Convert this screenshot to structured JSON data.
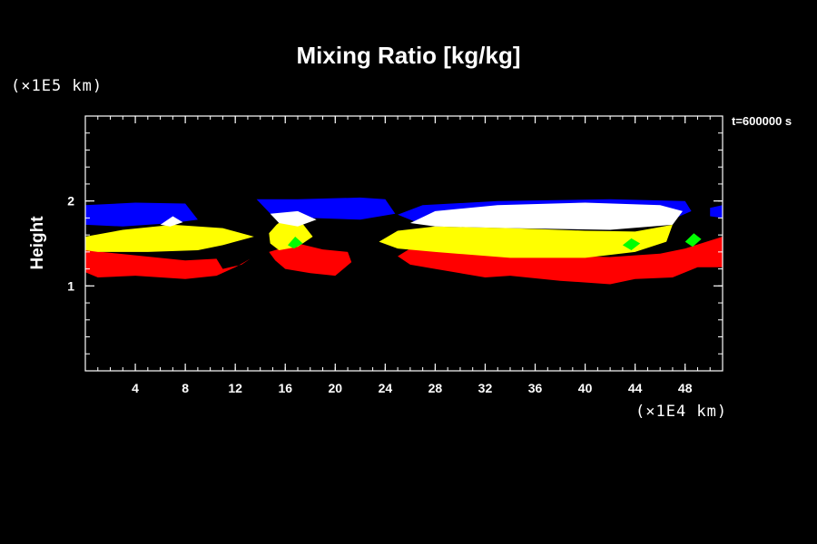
{
  "chart_data": {
    "type": "heatmap",
    "title": "Mixing Ratio [kg/kg]",
    "ylabel": "Height",
    "xunit": "(×1E4 km)",
    "yunit": "(×1E5 km)",
    "timestamp": "t=600000 s",
    "xlim": [
      0,
      51
    ],
    "ylim": [
      0,
      3
    ],
    "xticks": [
      4,
      8,
      12,
      16,
      20,
      24,
      28,
      32,
      36,
      40,
      44,
      48
    ],
    "yticks": [
      1,
      2
    ],
    "x_minor_step": 1,
    "y_minor_step": 0.2,
    "background": "#000000",
    "layers": [
      {
        "color": "#ff0000",
        "regions": [
          [
            [
              0,
              1.42
            ],
            [
              4,
              1.36
            ],
            [
              8,
              1.3
            ],
            [
              10.5,
              1.32
            ],
            [
              11,
              1.2
            ],
            [
              12.5,
              1.25
            ],
            [
              13.2,
              1.32
            ],
            [
              12,
              1.22
            ],
            [
              10.5,
              1.12
            ],
            [
              8,
              1.08
            ],
            [
              4,
              1.12
            ],
            [
              1,
              1.1
            ],
            [
              0,
              1.16
            ]
          ],
          [
            [
              14.7,
              1.4
            ],
            [
              17,
              1.5
            ],
            [
              19,
              1.43
            ],
            [
              21,
              1.4
            ],
            [
              21.3,
              1.28
            ],
            [
              20,
              1.12
            ],
            [
              18,
              1.15
            ],
            [
              16,
              1.2
            ],
            [
              15.2,
              1.3
            ]
          ],
          [
            [
              26,
              1.44
            ],
            [
              30,
              1.4
            ],
            [
              36,
              1.36
            ],
            [
              42,
              1.34
            ],
            [
              46,
              1.38
            ],
            [
              48,
              1.44
            ],
            [
              51,
              1.58
            ],
            [
              51,
              1.22
            ],
            [
              49,
              1.22
            ],
            [
              47,
              1.1
            ],
            [
              44,
              1.08
            ],
            [
              42,
              1.02
            ],
            [
              38,
              1.06
            ],
            [
              34,
              1.12
            ],
            [
              32,
              1.1
            ],
            [
              28,
              1.2
            ],
            [
              26,
              1.25
            ],
            [
              25,
              1.35
            ]
          ]
        ]
      },
      {
        "color": "#ffff00",
        "regions": [
          [
            [
              0,
              1.58
            ],
            [
              3,
              1.66
            ],
            [
              7,
              1.72
            ],
            [
              9,
              1.7
            ],
            [
              11,
              1.68
            ],
            [
              13.5,
              1.58
            ],
            [
              11,
              1.48
            ],
            [
              9,
              1.42
            ],
            [
              5,
              1.4
            ],
            [
              1,
              1.4
            ],
            [
              0,
              1.42
            ]
          ],
          [
            [
              14.7,
              1.62
            ],
            [
              15.3,
              1.72
            ],
            [
              16,
              1.8
            ],
            [
              17.3,
              1.75
            ],
            [
              18.2,
              1.58
            ],
            [
              17,
              1.46
            ],
            [
              15.5,
              1.42
            ],
            [
              14.8,
              1.5
            ]
          ],
          [
            [
              23.5,
              1.52
            ],
            [
              25,
              1.65
            ],
            [
              28,
              1.7
            ],
            [
              34,
              1.68
            ],
            [
              40,
              1.65
            ],
            [
              44,
              1.64
            ],
            [
              47,
              1.72
            ],
            [
              46.5,
              1.52
            ],
            [
              44,
              1.4
            ],
            [
              40,
              1.33
            ],
            [
              34,
              1.33
            ],
            [
              28,
              1.4
            ],
            [
              25,
              1.44
            ]
          ]
        ]
      },
      {
        "color": "#0000ff",
        "regions": [
          [
            [
              0,
              1.95
            ],
            [
              4,
              1.98
            ],
            [
              8,
              1.97
            ],
            [
              9,
              1.78
            ],
            [
              7,
              1.74
            ],
            [
              3,
              1.7
            ],
            [
              0,
              1.72
            ]
          ],
          [
            [
              13.7,
              2.02
            ],
            [
              17,
              2.02
            ],
            [
              22,
              2.04
            ],
            [
              24,
              2.02
            ],
            [
              24.8,
              1.85
            ],
            [
              22,
              1.78
            ],
            [
              18,
              1.8
            ],
            [
              15,
              1.82
            ]
          ],
          [
            [
              25,
              1.84
            ],
            [
              27,
              1.95
            ],
            [
              33,
              2.0
            ],
            [
              42,
              2.02
            ],
            [
              48,
              2.0
            ],
            [
              48.5,
              1.88
            ],
            [
              46,
              1.72
            ],
            [
              42,
              1.7
            ],
            [
              34,
              1.7
            ],
            [
              28,
              1.72
            ],
            [
              26.5,
              1.75
            ]
          ],
          [
            [
              50,
              1.92
            ],
            [
              51,
              1.95
            ],
            [
              51,
              1.8
            ],
            [
              50,
              1.82
            ]
          ]
        ]
      },
      {
        "color": "#ffffff",
        "regions": [
          [
            [
              6,
              1.72
            ],
            [
              7,
              1.82
            ],
            [
              7.8,
              1.75
            ],
            [
              6.8,
              1.7
            ]
          ],
          [
            [
              14.8,
              1.85
            ],
            [
              17,
              1.88
            ],
            [
              18.5,
              1.78
            ],
            [
              17,
              1.7
            ],
            [
              15.5,
              1.74
            ]
          ],
          [
            [
              26,
              1.74
            ],
            [
              28,
              1.88
            ],
            [
              33,
              1.95
            ],
            [
              40,
              1.98
            ],
            [
              46,
              1.95
            ],
            [
              47.8,
              1.88
            ],
            [
              47,
              1.72
            ],
            [
              42,
              1.66
            ],
            [
              34,
              1.68
            ],
            [
              28,
              1.7
            ]
          ]
        ]
      },
      {
        "color": "#00ff00",
        "regions": [
          [
            [
              16.2,
              1.48
            ],
            [
              16.8,
              1.58
            ],
            [
              17.4,
              1.5
            ],
            [
              16.7,
              1.44
            ]
          ],
          [
            [
              43,
              1.48
            ],
            [
              43.7,
              1.56
            ],
            [
              44.4,
              1.5
            ],
            [
              43.7,
              1.42
            ]
          ],
          [
            [
              48,
              1.52
            ],
            [
              48.7,
              1.62
            ],
            [
              49.3,
              1.55
            ],
            [
              48.6,
              1.46
            ]
          ]
        ]
      }
    ]
  }
}
